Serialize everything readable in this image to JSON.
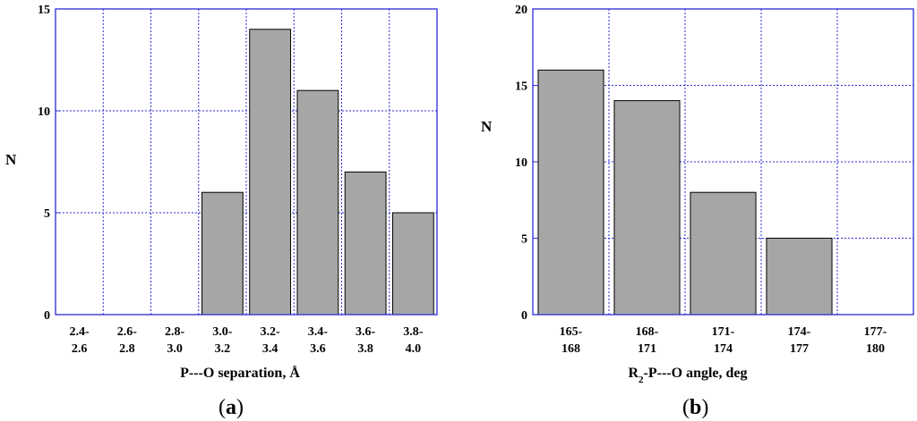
{
  "chart_data": [
    {
      "type": "bar",
      "panel_label": "a",
      "categories": [
        [
          "2.4-",
          "2.6"
        ],
        [
          "2.6-",
          "2.8"
        ],
        [
          "2.8-",
          "3.0"
        ],
        [
          "3.0-",
          "3.2"
        ],
        [
          "3.2-",
          "3.4"
        ],
        [
          "3.4-",
          "3.6"
        ],
        [
          "3.6-",
          "3.8"
        ],
        [
          "3.8-",
          "4.0"
        ]
      ],
      "values": [
        0,
        0,
        0,
        6,
        14,
        11,
        7,
        5
      ],
      "ylim": [
        0,
        15
      ],
      "yticks": [
        0,
        5,
        10,
        15
      ],
      "grid": true,
      "xlabel": "P---O separation, Å",
      "ylabel": "N",
      "colors": {
        "bar": "#a6a6a6",
        "grid": "#2b2bd6",
        "frame": "#2b2bd6"
      }
    },
    {
      "type": "bar",
      "panel_label": "b",
      "categories": [
        [
          "165-",
          "168"
        ],
        [
          "168-",
          "171"
        ],
        [
          "171-",
          "174"
        ],
        [
          "174-",
          "177"
        ],
        [
          "177-",
          "180"
        ]
      ],
      "values": [
        16,
        14,
        8,
        5,
        0
      ],
      "ylim": [
        0,
        20
      ],
      "yticks": [
        0,
        5,
        10,
        15,
        20
      ],
      "grid": true,
      "xlabel_parts": [
        "R",
        "2",
        "-P---O angle, deg"
      ],
      "ylabel": "N",
      "colors": {
        "bar": "#a6a6a6",
        "grid": "#2b2bd6",
        "frame": "#2b2bd6"
      }
    }
  ]
}
